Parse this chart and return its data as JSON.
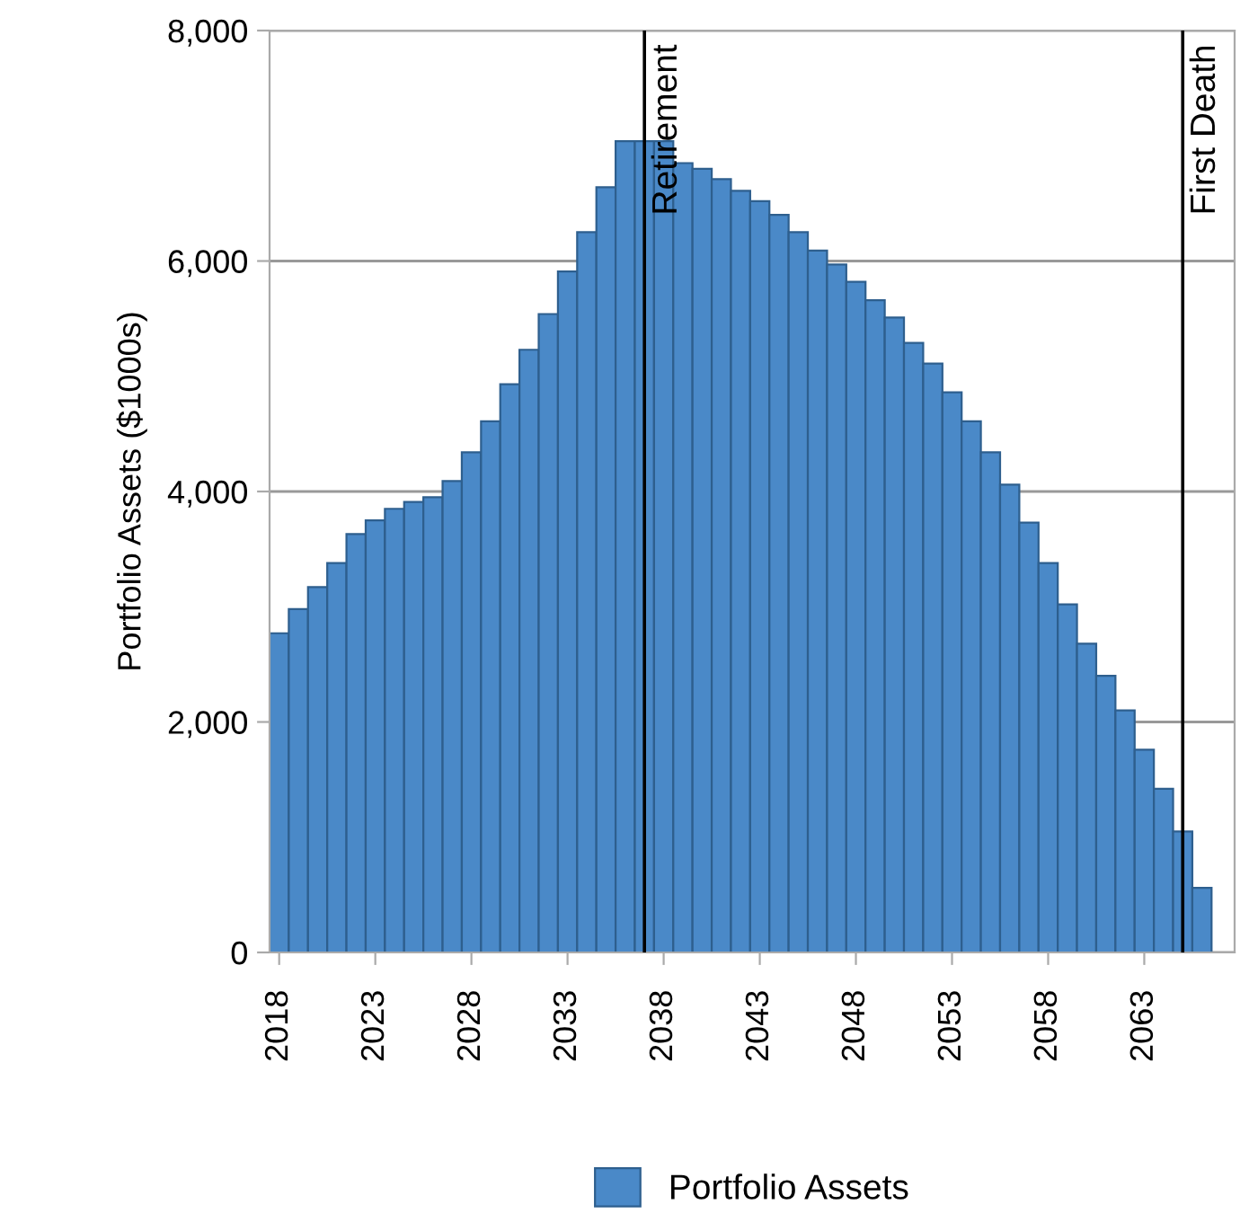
{
  "chart_data": {
    "type": "bar",
    "ylabel": "Portfolio Assets ($1000s)",
    "x": [
      2018,
      2019,
      2020,
      2021,
      2022,
      2023,
      2024,
      2025,
      2026,
      2027,
      2028,
      2029,
      2030,
      2031,
      2032,
      2033,
      2034,
      2035,
      2036,
      2037,
      2038,
      2039,
      2040,
      2041,
      2042,
      2043,
      2044,
      2045,
      2046,
      2047,
      2048,
      2049,
      2050,
      2051,
      2052,
      2053,
      2054,
      2055,
      2056,
      2057,
      2058,
      2059,
      2060,
      2061,
      2062,
      2063,
      2064,
      2065,
      2066
    ],
    "series": [
      {
        "name": "Portfolio Assets",
        "color": "#4a89c8",
        "values": [
          2770,
          2980,
          3170,
          3380,
          3630,
          3750,
          3850,
          3910,
          3950,
          4090,
          4340,
          4610,
          4930,
          5230,
          5540,
          5910,
          6250,
          6640,
          7040,
          7040,
          7040,
          6850,
          6800,
          6710,
          6610,
          6520,
          6400,
          6250,
          6090,
          5970,
          5820,
          5660,
          5510,
          5290,
          5110,
          4860,
          4610,
          4340,
          4060,
          3730,
          3380,
          3020,
          2680,
          2400,
          2100,
          1760,
          1420,
          1050,
          560
        ]
      }
    ],
    "xlim": [
      2017.5,
      2067.7
    ],
    "xticks": [
      2018,
      2023,
      2028,
      2033,
      2038,
      2043,
      2048,
      2053,
      2058,
      2063
    ],
    "ylim": [
      0,
      8000
    ],
    "yticks": [
      0,
      {
        "value": 2000,
        "label": "2,000"
      },
      {
        "value": 4000,
        "label": "4,000"
      },
      {
        "value": 6000,
        "label": "6,000"
      },
      {
        "value": 8000,
        "label": "8,000"
      }
    ],
    "ref_lines": [
      {
        "axis": "x",
        "value": 2037,
        "label": "Retirement",
        "color": "#000000"
      },
      {
        "axis": "x",
        "value": 2065,
        "label": "First Death",
        "color": "#000000"
      }
    ],
    "grid": "y",
    "legend": "bottom"
  }
}
